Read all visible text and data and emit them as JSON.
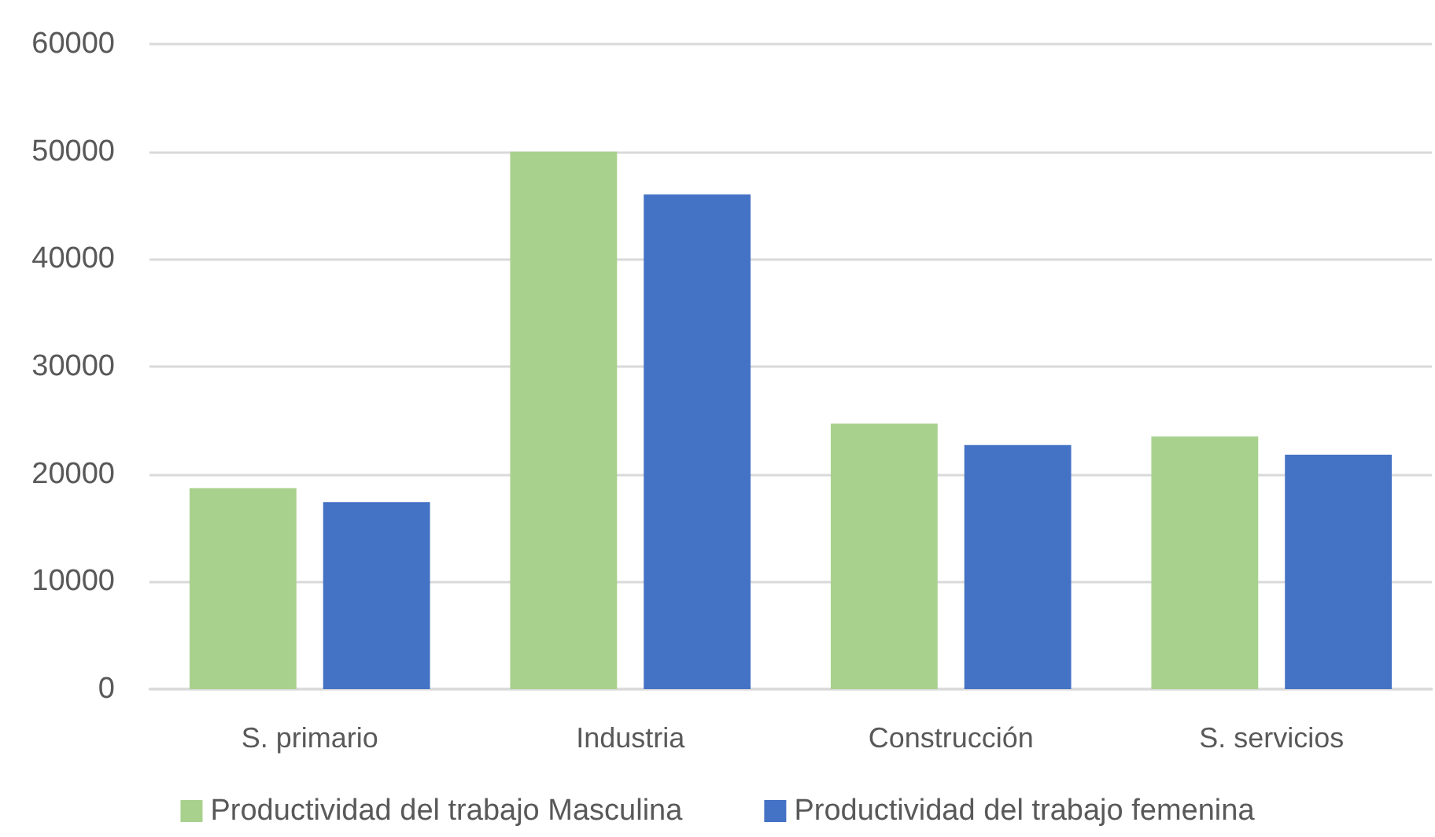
{
  "chart_data": {
    "type": "bar",
    "categories": [
      "S. primario",
      "Industria",
      "Construcción",
      "S. servicios"
    ],
    "series": [
      {
        "name": "Productividad del trabajo Masculina",
        "color": "#a9d18e",
        "values": [
          18700,
          50000,
          24700,
          23500
        ]
      },
      {
        "name": "Productividad del trabajo femenina",
        "color": "#4472c4",
        "values": [
          17400,
          46000,
          22700,
          21800
        ]
      }
    ],
    "ylim": [
      0,
      60000
    ],
    "yticks": [
      0,
      10000,
      20000,
      30000,
      40000,
      50000,
      60000
    ],
    "grid": "y",
    "legend": "bottom"
  }
}
